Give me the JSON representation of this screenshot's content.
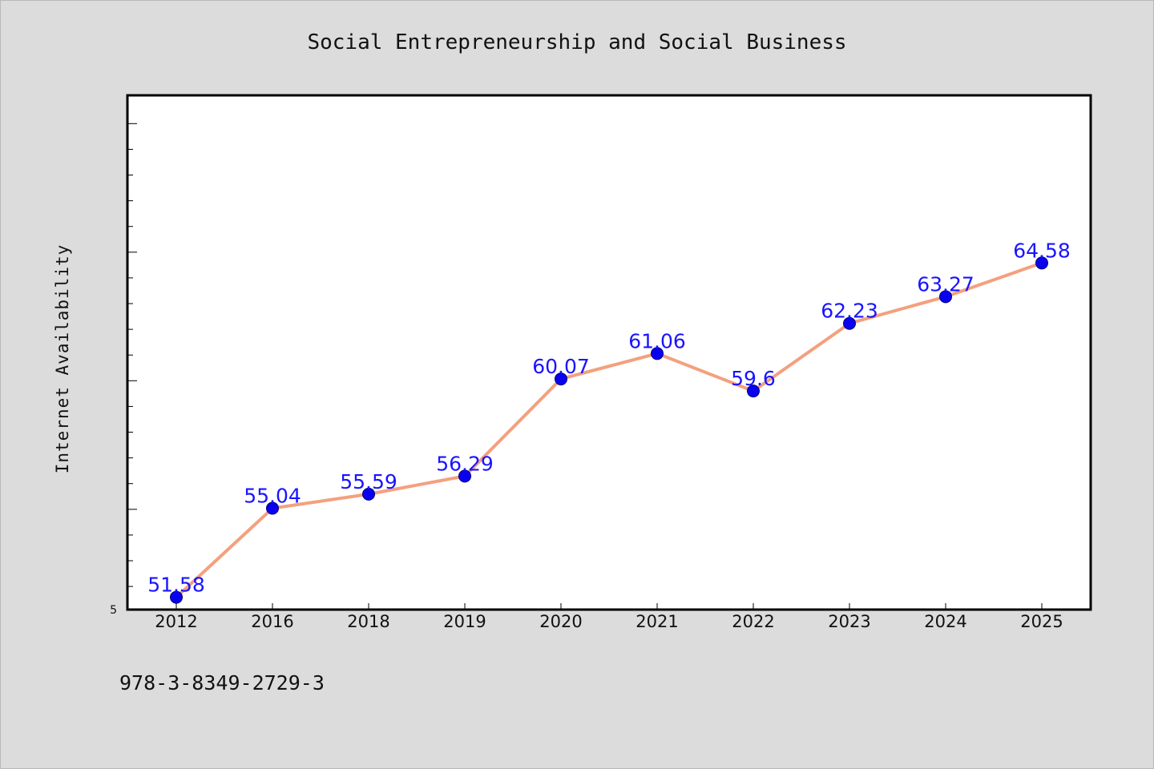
{
  "chart_data": {
    "type": "line",
    "title": "Social Entrepreneurship and Social Business",
    "xlabel": "",
    "ylabel": "Internet Availability",
    "categories": [
      "2012",
      "2016",
      "2018",
      "2019",
      "2020",
      "2021",
      "2022",
      "2023",
      "2024",
      "2025"
    ],
    "series": [
      {
        "values": [
          51.58,
          55.04,
          55.59,
          56.29,
          60.07,
          61.06,
          59.6,
          62.23,
          63.27,
          64.58
        ],
        "value_labels": [
          "51.58",
          "55.04",
          "55.59",
          "56.29",
          "60.07",
          "61.06",
          "59.6",
          "62.23",
          "63.27",
          "64.58"
        ]
      }
    ],
    "ytick_labels": [
      "5"
    ],
    "ylim": [
      51.1,
      71.1
    ],
    "grid": false,
    "legend": "none",
    "colors": {
      "line": "#f4a07e",
      "marker": "#0a00f0",
      "data_label": "#1a14ff",
      "plot_background": "#ffffff",
      "page_background": "#dcdcdc"
    }
  },
  "footer": {
    "isbn": "978-3-8349-2729-3"
  }
}
